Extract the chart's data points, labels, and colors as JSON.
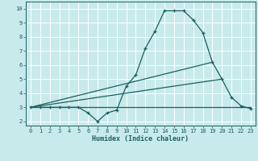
{
  "title": "",
  "xlabel": "Humidex (Indice chaleur)",
  "ylabel": "",
  "xlim": [
    -0.5,
    23.5
  ],
  "ylim": [
    1.7,
    10.5
  ],
  "xticks": [
    0,
    1,
    2,
    3,
    4,
    5,
    6,
    7,
    8,
    9,
    10,
    11,
    12,
    13,
    14,
    15,
    16,
    17,
    18,
    19,
    20,
    21,
    22,
    23
  ],
  "yticks": [
    2,
    3,
    4,
    5,
    6,
    7,
    8,
    9,
    10
  ],
  "bg_color": "#c8eaea",
  "line_color": "#1a6060",
  "grid_color": "#e8e8e8",
  "series": [
    {
      "x": [
        0,
        1,
        2,
        3,
        4,
        5,
        6,
        7,
        8,
        9,
        10,
        11,
        12,
        13,
        14,
        15,
        16,
        17,
        18,
        19,
        20,
        21,
        22,
        23
      ],
      "y": [
        3.0,
        3.0,
        3.0,
        3.0,
        3.0,
        3.0,
        2.6,
        2.0,
        2.6,
        2.8,
        4.5,
        5.3,
        7.2,
        8.4,
        9.85,
        9.85,
        9.85,
        9.2,
        8.3,
        6.2,
        5.0,
        3.7,
        3.1,
        2.9
      ],
      "marker": true
    },
    {
      "x": [
        0,
        19
      ],
      "y": [
        3.0,
        6.2
      ],
      "marker": false
    },
    {
      "x": [
        0,
        20
      ],
      "y": [
        3.0,
        5.0
      ],
      "marker": false
    },
    {
      "x": [
        0,
        23
      ],
      "y": [
        3.0,
        3.0
      ],
      "marker": false
    }
  ]
}
